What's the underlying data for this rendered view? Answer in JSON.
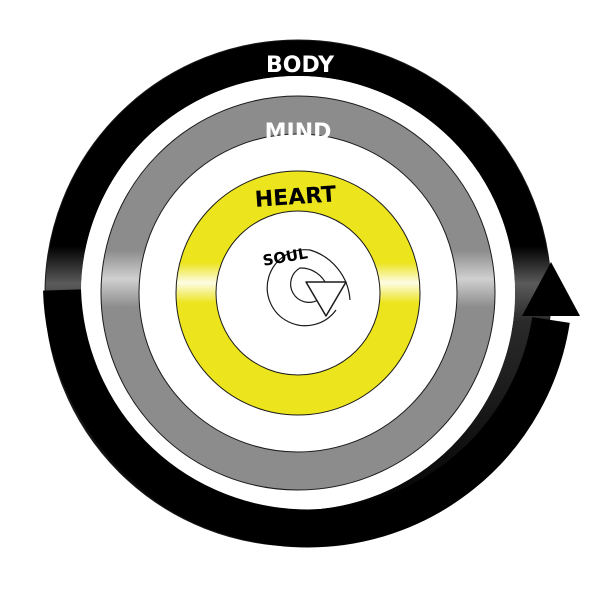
{
  "labels": {
    "body": "BODY",
    "mind": "MIND",
    "heart": "HEART",
    "soul": "SOUL"
  },
  "colors": {
    "body": "#000000",
    "mind": "#8c8c8c",
    "heart": "#ece41c",
    "soul": "#ffffff",
    "outline": "#1a1a1a",
    "gap": "#ffffff"
  }
}
